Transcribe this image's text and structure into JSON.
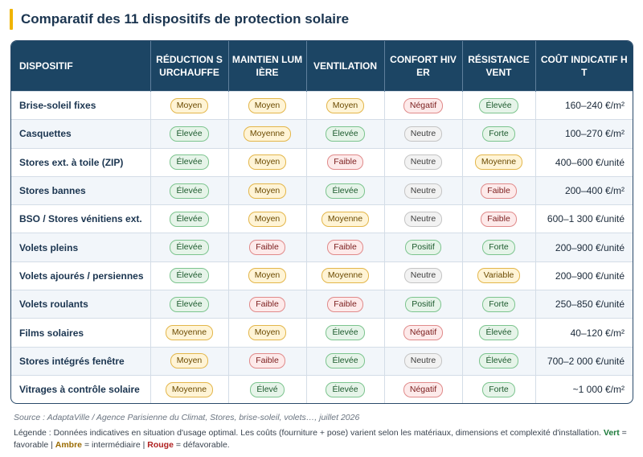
{
  "title": "Comparatif des 11 dispositifs de protection solaire",
  "columns": [
    "DISPOSITIF",
    "RÉDUCTION SURCHAUFFE",
    "MAINTIEN LUMIÈRE",
    "VENTILATION",
    "CONFORT HIVER",
    "RÉSISTANCE VENT",
    "COÛT INDICATIF HT"
  ],
  "rows": [
    {
      "name": "Brise-soleil fixes",
      "cells": [
        {
          "t": "Moyen",
          "c": "amber"
        },
        {
          "t": "Moyen",
          "c": "amber"
        },
        {
          "t": "Moyen",
          "c": "amber"
        },
        {
          "t": "Négatif",
          "c": "red"
        },
        {
          "t": "Élevée",
          "c": "green"
        }
      ],
      "cost": "160–240 €/m²"
    },
    {
      "name": "Casquettes",
      "cells": [
        {
          "t": "Élevée",
          "c": "green"
        },
        {
          "t": "Moyenne",
          "c": "amber"
        },
        {
          "t": "Élevée",
          "c": "green"
        },
        {
          "t": "Neutre",
          "c": "grey"
        },
        {
          "t": "Forte",
          "c": "green"
        }
      ],
      "cost": "100–270 €/m²"
    },
    {
      "name": "Stores ext. à toile (ZIP)",
      "cells": [
        {
          "t": "Élevée",
          "c": "green"
        },
        {
          "t": "Moyen",
          "c": "amber"
        },
        {
          "t": "Faible",
          "c": "red"
        },
        {
          "t": "Neutre",
          "c": "grey"
        },
        {
          "t": "Moyenne",
          "c": "amber"
        }
      ],
      "cost": "400–600 €/unité"
    },
    {
      "name": "Stores bannes",
      "cells": [
        {
          "t": "Élevée",
          "c": "green"
        },
        {
          "t": "Moyen",
          "c": "amber"
        },
        {
          "t": "Élevée",
          "c": "green"
        },
        {
          "t": "Neutre",
          "c": "grey"
        },
        {
          "t": "Faible",
          "c": "red"
        }
      ],
      "cost": "200–400 €/m²"
    },
    {
      "name": "BSO / Stores vénitiens ext.",
      "cells": [
        {
          "t": "Élevée",
          "c": "green"
        },
        {
          "t": "Moyen",
          "c": "amber"
        },
        {
          "t": "Moyenne",
          "c": "amber"
        },
        {
          "t": "Neutre",
          "c": "grey"
        },
        {
          "t": "Faible",
          "c": "red"
        }
      ],
      "cost": "600–1 300 €/unité"
    },
    {
      "name": "Volets pleins",
      "cells": [
        {
          "t": "Élevée",
          "c": "green"
        },
        {
          "t": "Faible",
          "c": "red"
        },
        {
          "t": "Faible",
          "c": "red"
        },
        {
          "t": "Positif",
          "c": "green"
        },
        {
          "t": "Forte",
          "c": "green"
        }
      ],
      "cost": "200–900 €/unité"
    },
    {
      "name": "Volets ajourés / persiennes",
      "cells": [
        {
          "t": "Élevée",
          "c": "green"
        },
        {
          "t": "Moyen",
          "c": "amber"
        },
        {
          "t": "Moyenne",
          "c": "amber"
        },
        {
          "t": "Neutre",
          "c": "grey"
        },
        {
          "t": "Variable",
          "c": "amber"
        }
      ],
      "cost": "200–900 €/unité"
    },
    {
      "name": "Volets roulants",
      "cells": [
        {
          "t": "Élevée",
          "c": "green"
        },
        {
          "t": "Faible",
          "c": "red"
        },
        {
          "t": "Faible",
          "c": "red"
        },
        {
          "t": "Positif",
          "c": "green"
        },
        {
          "t": "Forte",
          "c": "green"
        }
      ],
      "cost": "250–850 €/unité"
    },
    {
      "name": "Films solaires",
      "cells": [
        {
          "t": "Moyenne",
          "c": "amber"
        },
        {
          "t": "Moyen",
          "c": "amber"
        },
        {
          "t": "Élevée",
          "c": "green"
        },
        {
          "t": "Négatif",
          "c": "red"
        },
        {
          "t": "Élevée",
          "c": "green"
        }
      ],
      "cost": "40–120 €/m²"
    },
    {
      "name": "Stores intégrés fenêtre",
      "cells": [
        {
          "t": "Moyen",
          "c": "amber"
        },
        {
          "t": "Faible",
          "c": "red"
        },
        {
          "t": "Élevée",
          "c": "green"
        },
        {
          "t": "Neutre",
          "c": "grey"
        },
        {
          "t": "Élevée",
          "c": "green"
        }
      ],
      "cost": "700–2 000 €/unité"
    },
    {
      "name": "Vitrages à contrôle solaire",
      "cells": [
        {
          "t": "Moyenne",
          "c": "amber"
        },
        {
          "t": "Élevé",
          "c": "green"
        },
        {
          "t": "Élevée",
          "c": "green"
        },
        {
          "t": "Négatif",
          "c": "red"
        },
        {
          "t": "Forte",
          "c": "green"
        }
      ],
      "cost": "~1 000 €/m²"
    }
  ],
  "source": "Source : AdaptaVille / Agence Parisienne du Climat, Stores, brise-soleil, volets…, juillet 2026",
  "legend": {
    "prefix": "Légende : Données indicatives en situation d'usage optimal. Les coûts (fourniture + pose) varient selon les matériaux, dimensions et complexité d'installation. ",
    "green_word": "Vert",
    "green_text": " = favorable | ",
    "amber_word": "Ambre",
    "amber_text": " = intermédiaire | ",
    "red_word": "Rouge",
    "red_text": " = défavorable."
  },
  "colors": {
    "header_bg": "#1c4564",
    "accent": "#f0b400",
    "green": "#e6f4e9",
    "amber": "#fff4d6",
    "red": "#fdeaea",
    "grey": "#f2f2f2"
  }
}
